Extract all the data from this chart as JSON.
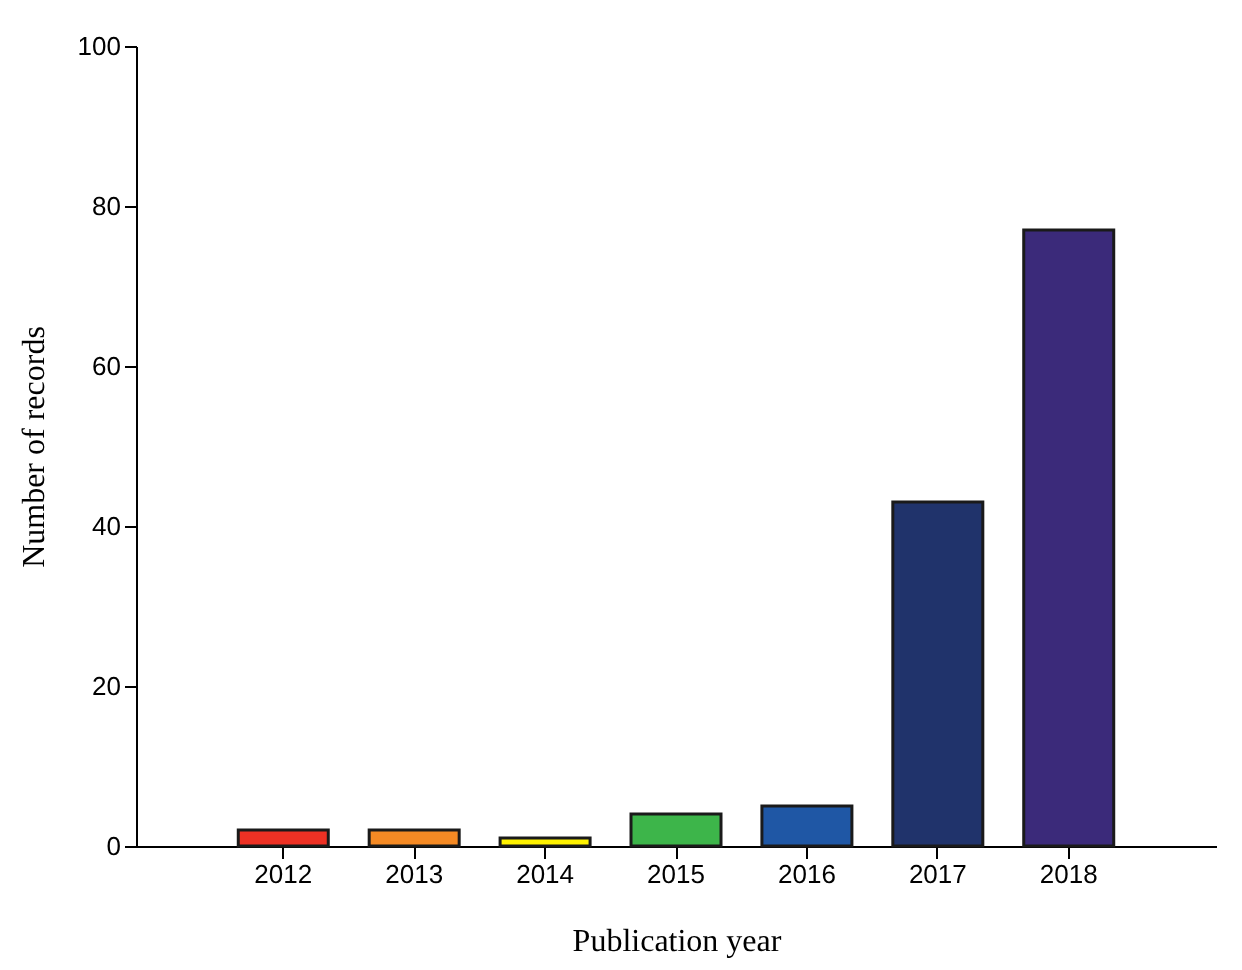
{
  "chart_data": {
    "type": "bar",
    "categories": [
      "2012",
      "2013",
      "2014",
      "2015",
      "2016",
      "2017",
      "2018"
    ],
    "values": [
      2,
      2,
      1,
      4,
      5,
      43,
      77
    ],
    "colors": [
      "#ee3124",
      "#f58a24",
      "#fff200",
      "#3db54a",
      "#1f57a5",
      "#20336b",
      "#3b2a7a"
    ],
    "xlabel": "Publication year",
    "ylabel": "Number of records",
    "ylim": [
      0,
      100
    ],
    "yticks": [
      0,
      20,
      40,
      60,
      80,
      100
    ],
    "grid": false,
    "legend": false
  }
}
